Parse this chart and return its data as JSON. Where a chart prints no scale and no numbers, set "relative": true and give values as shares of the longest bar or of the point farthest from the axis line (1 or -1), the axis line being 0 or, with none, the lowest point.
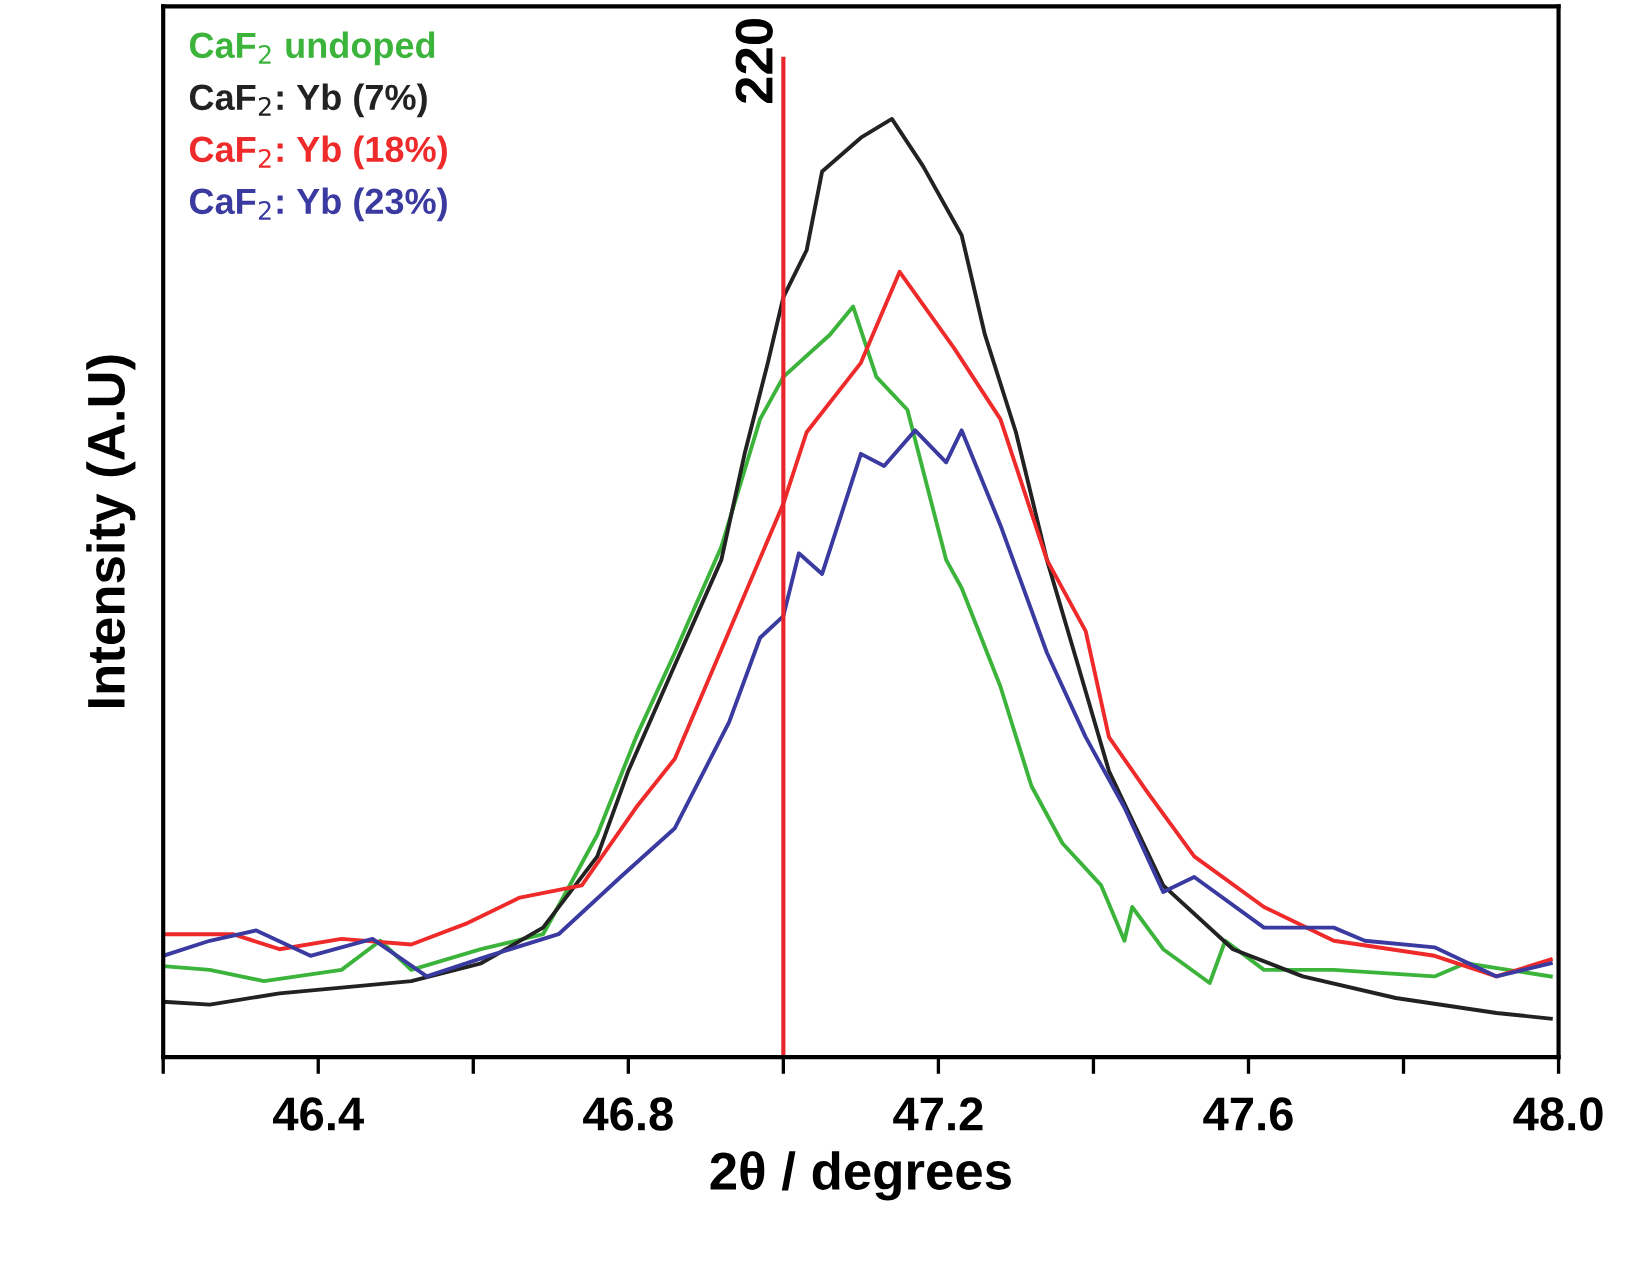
{
  "chart_data": {
    "type": "line",
    "xlabel": "2θ / degrees",
    "ylabel": "Intensity (A.U)",
    "relative": true,
    "xlim": [
      46.2,
      48.0
    ],
    "xticks": [
      {
        "value": 46.2,
        "label": null
      },
      46.4,
      {
        "value": 46.6,
        "label": null
      },
      46.8,
      {
        "value": 47.0,
        "label": null
      },
      47.2,
      {
        "value": 47.4,
        "label": null
      },
      47.6,
      {
        "value": 47.8,
        "label": null
      },
      {
        "value": 48.0,
        "label": "48.0"
      }
    ],
    "annotations": [
      "220"
    ],
    "legend": "top left",
    "grid": false,
    "marker": "none",
    "line_style": "solid",
    "ref_lines": [
      {
        "axis": "x",
        "value": 47.0,
        "color": "#e8262b",
        "line_style": "solid"
      }
    ],
    "series": [
      {
        "name": "CaF$_{2}$ undoped",
        "color": "#3cb43c",
        "x": [
          46.2,
          46.26,
          46.33,
          46.43,
          46.48,
          46.52,
          46.61,
          46.69,
          46.76,
          46.81,
          46.86,
          46.92,
          46.97,
          47.0,
          47.06,
          47.09,
          47.12,
          47.16,
          47.21,
          47.23,
          47.28,
          47.32,
          47.36,
          47.41,
          47.44,
          47.45,
          47.49,
          47.55,
          47.57,
          47.62,
          47.71,
          47.84,
          47.88,
          47.99
        ],
        "values": [
          0.097,
          0.093,
          0.081,
          0.093,
          0.124,
          0.093,
          0.115,
          0.131,
          0.237,
          0.341,
          0.431,
          0.544,
          0.68,
          0.725,
          0.77,
          0.8,
          0.725,
          0.69,
          0.53,
          0.5,
          0.395,
          0.289,
          0.228,
          0.183,
          0.124,
          0.16,
          0.115,
          0.079,
          0.124,
          0.093,
          0.093,
          0.086,
          0.1,
          0.086
        ]
      },
      {
        "name": "CaF$_{2}$: Yb (7%)",
        "color": "#222222",
        "x": [
          46.2,
          46.26,
          46.35,
          46.43,
          46.52,
          46.61,
          46.69,
          46.76,
          46.8,
          46.86,
          46.92,
          46.95,
          46.98,
          47.0,
          47.03,
          47.05,
          47.1,
          47.14,
          47.18,
          47.23,
          47.26,
          47.3,
          47.34,
          47.38,
          47.42,
          47.49,
          47.58,
          47.67,
          47.79,
          47.92,
          47.99
        ],
        "values": [
          0.059,
          0.056,
          0.068,
          0.074,
          0.081,
          0.1,
          0.138,
          0.214,
          0.305,
          0.418,
          0.53,
          0.643,
          0.74,
          0.81,
          0.86,
          0.944,
          0.98,
          1.0,
          0.95,
          0.876,
          0.77,
          0.666,
          0.53,
          0.418,
          0.305,
          0.183,
          0.115,
          0.086,
          0.063,
          0.047,
          0.041
        ]
      },
      {
        "name": "CaF$_{2}$: Yb (18%)",
        "color": "#ee2a2a",
        "x": [
          46.2,
          46.29,
          46.35,
          46.43,
          46.52,
          46.59,
          46.66,
          46.74,
          46.81,
          46.86,
          46.93,
          47.0,
          47.03,
          47.1,
          47.15,
          47.22,
          47.28,
          47.34,
          47.39,
          47.42,
          47.47,
          47.53,
          47.62,
          47.71,
          47.84,
          47.92,
          47.99
        ],
        "values": [
          0.131,
          0.131,
          0.115,
          0.126,
          0.12,
          0.142,
          0.17,
          0.183,
          0.266,
          0.318,
          0.454,
          0.59,
          0.666,
          0.74,
          0.837,
          0.756,
          0.68,
          0.53,
          0.454,
          0.341,
          0.282,
          0.214,
          0.16,
          0.124,
          0.108,
          0.086,
          0.104
        ]
      },
      {
        "name": "CaF$_{2}$: Yb (23%)",
        "color": "#3a3aa0",
        "x": [
          46.2,
          46.26,
          46.32,
          46.39,
          46.47,
          46.54,
          46.62,
          46.71,
          46.79,
          46.86,
          46.93,
          46.97,
          47.0,
          47.02,
          47.05,
          47.1,
          47.13,
          47.17,
          47.21,
          47.23,
          47.28,
          47.34,
          47.39,
          47.44,
          47.49,
          47.53,
          47.62,
          47.71,
          47.75,
          47.84,
          47.92,
          47.99
        ],
        "values": [
          0.108,
          0.124,
          0.135,
          0.108,
          0.126,
          0.086,
          0.108,
          0.131,
          0.192,
          0.244,
          0.357,
          0.447,
          0.47,
          0.537,
          0.515,
          0.643,
          0.63,
          0.668,
          0.634,
          0.668,
          0.567,
          0.431,
          0.341,
          0.266,
          0.176,
          0.192,
          0.138,
          0.138,
          0.124,
          0.117,
          0.086,
          0.1
        ]
      }
    ]
  }
}
